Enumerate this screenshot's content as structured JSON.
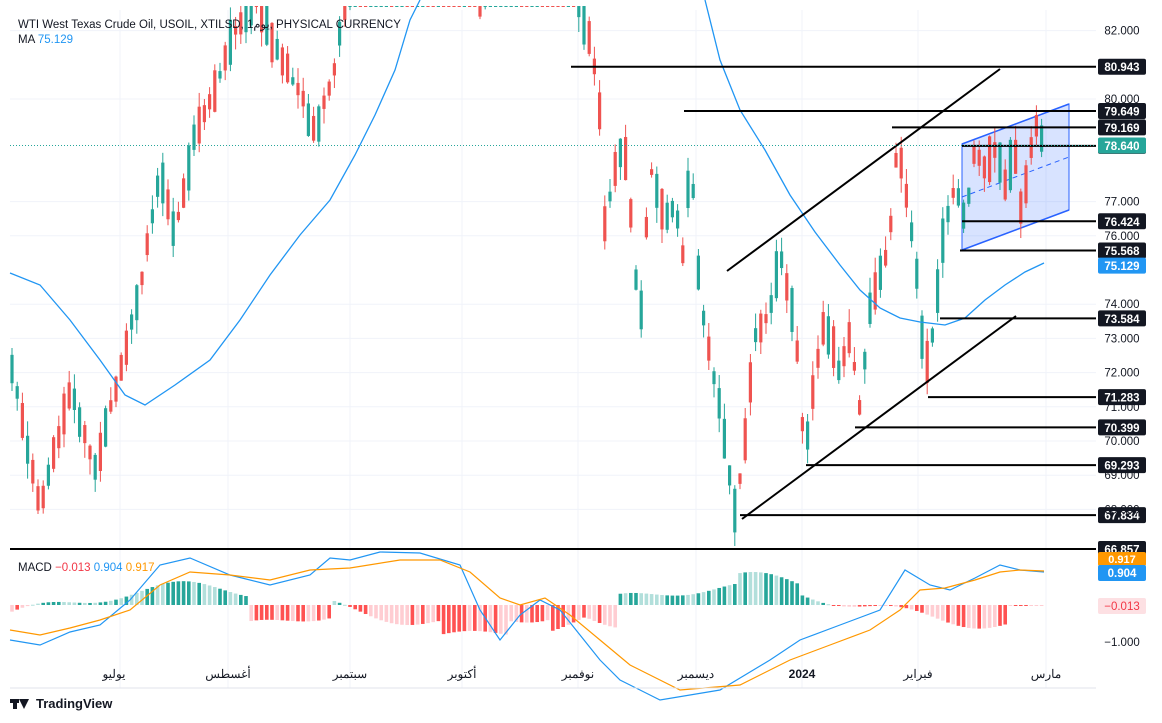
{
  "header": {
    "symbol_line": "WTI West Texas Crude Oil, USOIL, XTILSD, يوم1, PHYSICAL CURRENCY",
    "ma_label": "MA",
    "ma_value": "75.129",
    "macd_label": "MACD",
    "macd_hist": "−0.013",
    "macd_line": "0.904",
    "macd_signal": "0.917"
  },
  "colors": {
    "up": "#26a69a",
    "down": "#ef5350",
    "ma": "#2196f3",
    "signal": "#ff9800",
    "channel_fill": "#2962ff"
  },
  "price_axis": {
    "ticks": [
      "82.000",
      "80.000",
      "77.000",
      "76.000",
      "74.000",
      "73.000",
      "72.000",
      "71.000",
      "70.000",
      "69.000",
      "68.000"
    ],
    "tick_values": [
      82,
      80,
      77,
      76,
      74,
      73,
      72,
      71,
      70,
      69,
      68
    ]
  },
  "macd_axis": {
    "ticks": [
      "−1.000"
    ],
    "tick_values": [
      -1.0
    ]
  },
  "levels": [
    {
      "label": "80.943",
      "value": 80.943
    },
    {
      "label": "79.649",
      "value": 79.649
    },
    {
      "label": "79.169",
      "value": 79.169
    },
    {
      "label": "78.629",
      "value": 78.629
    },
    {
      "label": "76.424",
      "value": 76.424
    },
    {
      "label": "75.568",
      "value": 75.568
    },
    {
      "label": "73.584",
      "value": 73.584
    },
    {
      "label": "71.283",
      "value": 71.283
    },
    {
      "label": "70.399",
      "value": 70.399
    },
    {
      "label": "69.293",
      "value": 69.293
    },
    {
      "label": "67.834",
      "value": 67.834
    },
    {
      "label": "66.857",
      "value": 66.857
    }
  ],
  "tags": {
    "last_price": "78.640",
    "ma_tag": "75.129",
    "macd_tag": "0.904",
    "macd_hist_tag": "−0.013",
    "signal_tag": "0.917"
  },
  "time_axis": {
    "labels": [
      "يوليو",
      "أغسطس",
      "سبتمبر",
      "أكتوبر",
      "نوفمبر",
      "ديسمبر",
      "2024",
      "فبراير",
      "مارس"
    ]
  },
  "footer": {
    "brand": "TradingView"
  },
  "chart_data": {
    "type": "candlestick",
    "title": "WTI West Texas Crude Oil, USOIL, XTILSD, يوم1, PHYSICAL CURRENCY",
    "y_range": [
      66.857,
      82.3
    ],
    "ma_last": 75.129,
    "last_price": 78.64,
    "horizontal_levels": [
      80.943,
      79.649,
      79.169,
      78.629,
      76.424,
      75.568,
      73.584,
      71.283,
      70.399,
      69.293,
      67.834,
      66.857
    ],
    "macd": {
      "macd": 0.904,
      "signal": 0.917,
      "histogram": -0.013
    }
  }
}
